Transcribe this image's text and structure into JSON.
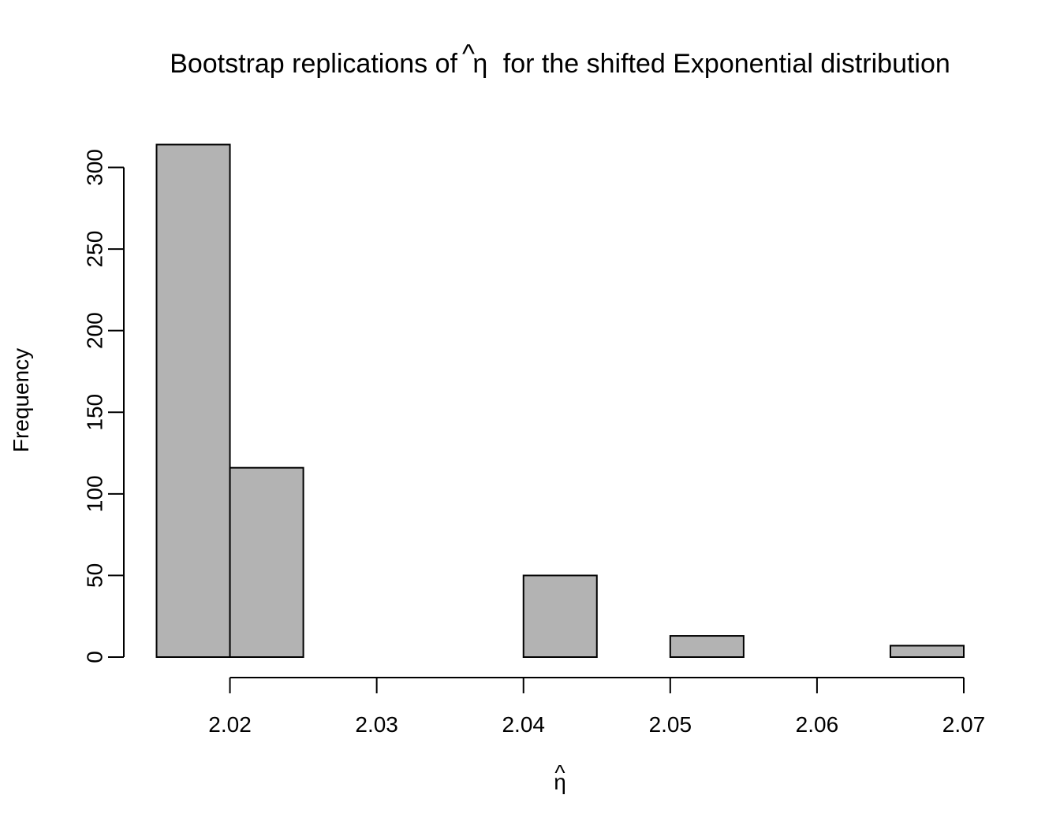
{
  "chart_data": {
    "type": "bar",
    "title_prefix": "Bootstrap replications of",
    "title_symbol": "η",
    "title_suffix": "for the shifted Exponential distribution",
    "xlabel": "η",
    "ylabel": "Frequency",
    "bar_color": "#b3b3b3",
    "bins": [
      {
        "start": 2.015,
        "end": 2.02,
        "count": 314
      },
      {
        "start": 2.02,
        "end": 2.025,
        "count": 116
      },
      {
        "start": 2.025,
        "end": 2.03,
        "count": 0
      },
      {
        "start": 2.03,
        "end": 2.035,
        "count": 0
      },
      {
        "start": 2.035,
        "end": 2.04,
        "count": 0
      },
      {
        "start": 2.04,
        "end": 2.045,
        "count": 50
      },
      {
        "start": 2.045,
        "end": 2.05,
        "count": 0
      },
      {
        "start": 2.05,
        "end": 2.055,
        "count": 13
      },
      {
        "start": 2.055,
        "end": 2.06,
        "count": 0
      },
      {
        "start": 2.06,
        "end": 2.065,
        "count": 0
      },
      {
        "start": 2.065,
        "end": 2.07,
        "count": 7
      }
    ],
    "x_ticks": [
      2.02,
      2.03,
      2.04,
      2.05,
      2.06,
      2.07
    ],
    "x_tick_labels": [
      "2.02",
      "2.03",
      "2.04",
      "2.05",
      "2.06",
      "2.07"
    ],
    "y_ticks": [
      0,
      50,
      100,
      150,
      200,
      250,
      300
    ],
    "y_tick_labels": [
      "0",
      "50",
      "100",
      "150",
      "200",
      "250",
      "300"
    ],
    "xlim": [
      2.015,
      2.07
    ],
    "ylim": [
      0,
      314
    ]
  }
}
